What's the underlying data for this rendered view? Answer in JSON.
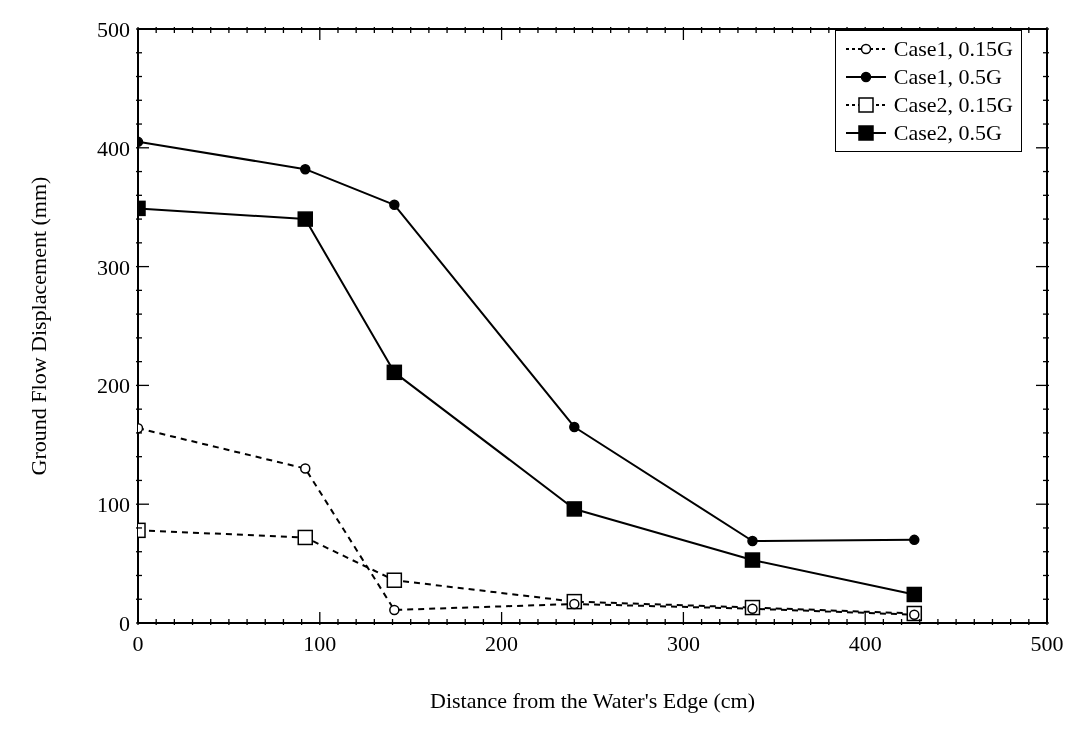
{
  "chart_data": {
    "type": "line",
    "xlabel": "Distance from the Water's Edge (cm)",
    "ylabel": "Ground Flow Displacement (mm)",
    "x": [
      0,
      92,
      141,
      240,
      338,
      427
    ],
    "series": [
      {
        "name": "Case1, 0.15G",
        "color": "#000000",
        "line_style": "dashed",
        "marker": "circle",
        "values": [
          164,
          130,
          11,
          16,
          12,
          7
        ]
      },
      {
        "name": "Case1, 0.5G",
        "color": "#000000",
        "line_style": "solid",
        "marker": "circle",
        "values": [
          405,
          382,
          352,
          165,
          69,
          70
        ]
      },
      {
        "name": "Case2, 0.15G",
        "color": "#000000",
        "line_style": "dashed",
        "marker": "square",
        "values": [
          78,
          72,
          36,
          18,
          13,
          8
        ]
      },
      {
        "name": "Case2, 0.5G",
        "color": "#000000",
        "line_style": "solid",
        "marker": "square",
        "values": [
          349,
          340,
          211,
          96,
          53,
          24
        ]
      }
    ],
    "xlim": [
      0,
      500
    ],
    "ylim": [
      0,
      500
    ],
    "xticks": [
      0,
      {
        "value": 10,
        "label": null
      },
      {
        "value": 20,
        "label": null
      },
      {
        "value": 30,
        "label": null
      },
      {
        "value": 40,
        "label": null
      },
      {
        "value": 50,
        "label": null
      },
      {
        "value": 60,
        "label": null
      },
      {
        "value": 70,
        "label": null
      },
      {
        "value": 80,
        "label": null
      },
      {
        "value": 90,
        "label": null
      },
      100,
      {
        "value": 110,
        "label": null
      },
      {
        "value": 120,
        "label": null
      },
      {
        "value": 130,
        "label": null
      },
      {
        "value": 140,
        "label": null
      },
      {
        "value": 150,
        "label": null
      },
      {
        "value": 160,
        "label": null
      },
      {
        "value": 170,
        "label": null
      },
      {
        "value": 180,
        "label": null
      },
      {
        "value": 190,
        "label": null
      },
      200,
      {
        "value": 210,
        "label": null
      },
      {
        "value": 220,
        "label": null
      },
      {
        "value": 230,
        "label": null
      },
      {
        "value": 240,
        "label": null
      },
      {
        "value": 250,
        "label": null
      },
      {
        "value": 260,
        "label": null
      },
      {
        "value": 270,
        "label": null
      },
      {
        "value": 280,
        "label": null
      },
      {
        "value": 290,
        "label": null
      },
      300,
      {
        "value": 310,
        "label": null
      },
      {
        "value": 320,
        "label": null
      },
      {
        "value": 330,
        "label": null
      },
      {
        "value": 340,
        "label": null
      },
      {
        "value": 350,
        "label": null
      },
      {
        "value": 360,
        "label": null
      },
      {
        "value": 370,
        "label": null
      },
      {
        "value": 380,
        "label": null
      },
      {
        "value": 390,
        "label": null
      },
      400,
      {
        "value": 410,
        "label": null
      },
      {
        "value": 420,
        "label": null
      },
      {
        "value": 430,
        "label": null
      },
      {
        "value": 440,
        "label": null
      },
      {
        "value": 450,
        "label": null
      },
      {
        "value": 460,
        "label": null
      },
      {
        "value": 470,
        "label": null
      },
      {
        "value": 480,
        "label": null
      },
      {
        "value": 490,
        "label": null
      },
      500
    ],
    "yticks": [
      0,
      {
        "value": 20,
        "label": null
      },
      {
        "value": 40,
        "label": null
      },
      {
        "value": 60,
        "label": null
      },
      {
        "value": 80,
        "label": null
      },
      100,
      {
        "value": 120,
        "label": null
      },
      {
        "value": 140,
        "label": null
      },
      {
        "value": 160,
        "label": null
      },
      {
        "value": 180,
        "label": null
      },
      200,
      {
        "value": 220,
        "label": null
      },
      {
        "value": 240,
        "label": null
      },
      {
        "value": 260,
        "label": null
      },
      {
        "value": 280,
        "label": null
      },
      300,
      {
        "value": 320,
        "label": null
      },
      {
        "value": 340,
        "label": null
      },
      {
        "value": 360,
        "label": null
      },
      {
        "value": 380,
        "label": null
      },
      400,
      {
        "value": 420,
        "label": null
      },
      {
        "value": 440,
        "label": null
      },
      {
        "value": 460,
        "label": null
      },
      {
        "value": 480,
        "label": null
      },
      500
    ],
    "grid": false,
    "legend": "top right"
  }
}
